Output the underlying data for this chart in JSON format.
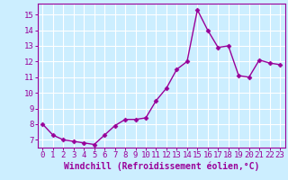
{
  "x": [
    0,
    1,
    2,
    3,
    4,
    5,
    6,
    7,
    8,
    9,
    10,
    11,
    12,
    13,
    14,
    15,
    16,
    17,
    18,
    19,
    20,
    21,
    22,
    23
  ],
  "y": [
    8.0,
    7.3,
    7.0,
    6.9,
    6.8,
    6.7,
    7.3,
    7.9,
    8.3,
    8.3,
    8.4,
    9.5,
    10.3,
    11.5,
    12.0,
    15.3,
    14.0,
    12.9,
    13.0,
    11.1,
    11.0,
    12.1,
    11.9,
    11.8
  ],
  "line_color": "#990099",
  "marker": "D",
  "marker_size": 2.5,
  "bg_color": "#cceeff",
  "grid_color": "#ffffff",
  "xlabel": "Windchill (Refroidissement éolien,°C)",
  "ylim": [
    6.5,
    15.7
  ],
  "yticks": [
    7,
    8,
    9,
    10,
    11,
    12,
    13,
    14,
    15
  ],
  "xlim": [
    -0.5,
    23.5
  ],
  "xticks": [
    0,
    1,
    2,
    3,
    4,
    5,
    6,
    7,
    8,
    9,
    10,
    11,
    12,
    13,
    14,
    15,
    16,
    17,
    18,
    19,
    20,
    21,
    22,
    23
  ],
  "xlabel_fontsize": 7.0,
  "tick_fontsize": 6.5,
  "line_width": 1.0
}
